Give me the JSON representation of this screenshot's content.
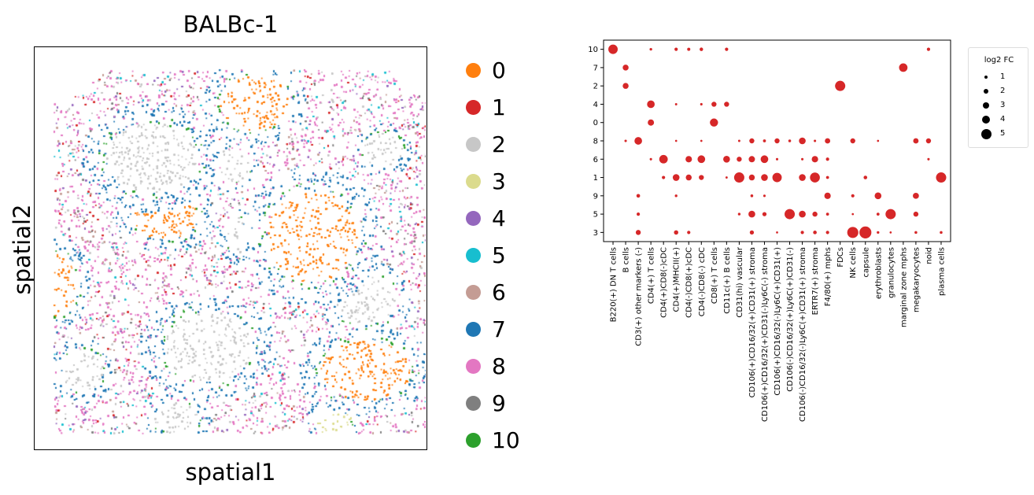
{
  "spatial_plot": {
    "title": "BALBc-1",
    "xlabel": "spatial1",
    "ylabel": "spatial2"
  },
  "legend": {
    "items": [
      {
        "label": "0",
        "color": "#ff7f0e"
      },
      {
        "label": "1",
        "color": "#d62728"
      },
      {
        "label": "2",
        "color": "#c7c7c7"
      },
      {
        "label": "3",
        "color": "#dbdb8d"
      },
      {
        "label": "4",
        "color": "#9467bd"
      },
      {
        "label": "5",
        "color": "#17becf"
      },
      {
        "label": "6",
        "color": "#c49c94"
      },
      {
        "label": "7",
        "color": "#1f77b4"
      },
      {
        "label": "8",
        "color": "#e377c2"
      },
      {
        "label": "9",
        "color": "#7f7f7f"
      },
      {
        "label": "10",
        "color": "#2ca02c"
      }
    ]
  },
  "chart_data": [
    {
      "type": "scatter",
      "title": "BALBc-1",
      "xlabel": "spatial1",
      "ylabel": "spatial2",
      "legend": [
        "0",
        "1",
        "2",
        "3",
        "4",
        "5",
        "6",
        "7",
        "8",
        "9",
        "10"
      ],
      "legend_position": "right"
    },
    {
      "type": "scatter",
      "title": "",
      "xlabel": "",
      "ylabel": "",
      "categories_x": [
        "B220(+) DN T cells",
        "B cells",
        "CD3(+) other markers (-)",
        "CD4(+) T cells",
        "CD4(+)CD8(-)cDC",
        "CD4(+)MHCII(+)",
        "CD4(-)CD8(+)cDC",
        "CD4(-)CD8(-) cDC",
        "CD8(+) T cells",
        "CD11c(+) B cells",
        "CD31(hi) vascular",
        "CD106(+)CD16/32(+)CD31(+) stroma",
        "CD106(+)CD16/32(+)CD31(-)Ly6C(-) stroma",
        "CD106(+)CD16/32(-)Ly6C(+)CD31(+)",
        "CD106(-)CD16/32(+)Ly6C(+)CD31(-)",
        "CD106(-)CD16/32(-)Ly6C(+)CD31(+) stroma",
        "ERTR7(+) stroma",
        "F4/80(+) mphs",
        "FDCs",
        "NK cells",
        "capsule",
        "erythroblasts",
        "granulocytes",
        "marginal zone mphs",
        "megakaryocytes",
        "noid",
        "plasma cells"
      ],
      "categories_y": [
        "10",
        "7",
        "2",
        "4",
        "0",
        "8",
        "6",
        "1",
        "9",
        "5",
        "3"
      ],
      "size_legend_title": "log2 FC",
      "size_legend": [
        "1",
        "2",
        "3",
        "4",
        "5"
      ],
      "color": "#d62728",
      "points": [
        {
          "x": "B220(+) DN T cells",
          "y": "10",
          "fc": 4.5
        },
        {
          "x": "CD4(+) T cells",
          "y": "10",
          "fc": 0.6
        },
        {
          "x": "CD4(+)MHCII(+)",
          "y": "10",
          "fc": 1.0
        },
        {
          "x": "CD4(-)CD8(+)cDC",
          "y": "10",
          "fc": 0.9
        },
        {
          "x": "CD4(-)CD8(-) cDC",
          "y": "10",
          "fc": 1.1
        },
        {
          "x": "CD11c(+) B cells",
          "y": "10",
          "fc": 1.0
        },
        {
          "x": "noid",
          "y": "10",
          "fc": 1.0
        },
        {
          "x": "B cells",
          "y": "7",
          "fc": 2.5
        },
        {
          "x": "marginal zone mphs",
          "y": "7",
          "fc": 4.0
        },
        {
          "x": "B cells",
          "y": "2",
          "fc": 2.5
        },
        {
          "x": "FDCs",
          "y": "2",
          "fc": 5.0
        },
        {
          "x": "CD4(+) T cells",
          "y": "4",
          "fc": 3.5
        },
        {
          "x": "CD4(+)MHCII(+)",
          "y": "4",
          "fc": 0.4
        },
        {
          "x": "CD4(-)CD8(-) cDC",
          "y": "4",
          "fc": 0.5
        },
        {
          "x": "CD8(+) T cells",
          "y": "4",
          "fc": 2.0
        },
        {
          "x": "CD11c(+) B cells",
          "y": "4",
          "fc": 2.0
        },
        {
          "x": "CD4(+) T cells",
          "y": "0",
          "fc": 2.7
        },
        {
          "x": "CD8(+) T cells",
          "y": "0",
          "fc": 3.8
        },
        {
          "x": "B cells",
          "y": "8",
          "fc": 0.5
        },
        {
          "x": "CD3(+) other markers (-)",
          "y": "8",
          "fc": 3.5
        },
        {
          "x": "CD4(+)MHCII(+)",
          "y": "8",
          "fc": 0.3
        },
        {
          "x": "CD4(-)CD8(-) cDC",
          "y": "8",
          "fc": 0.3
        },
        {
          "x": "CD31(hi) vascular",
          "y": "8",
          "fc": 0.4
        },
        {
          "x": "CD106(+)CD16/32(+)CD31(+) stroma",
          "y": "8",
          "fc": 2.0
        },
        {
          "x": "CD106(+)CD16/32(+)CD31(-)Ly6C(-) stroma",
          "y": "8",
          "fc": 0.8
        },
        {
          "x": "CD106(+)CD16/32(-)Ly6C(+)CD31(+)",
          "y": "8",
          "fc": 2.0
        },
        {
          "x": "CD106(-)CD16/32(+)Ly6C(+)CD31(-)",
          "y": "8",
          "fc": 0.7
        },
        {
          "x": "CD106(-)CD16/32(-)Ly6C(+)CD31(+) stroma",
          "y": "8",
          "fc": 3.0
        },
        {
          "x": "ERTR7(+) stroma",
          "y": "8",
          "fc": 0.5
        },
        {
          "x": "F4/80(+) mphs",
          "y": "8",
          "fc": 2.2
        },
        {
          "x": "NK cells",
          "y": "8",
          "fc": 2.0
        },
        {
          "x": "erythroblasts",
          "y": "8",
          "fc": 0.3
        },
        {
          "x": "megakaryocytes",
          "y": "8",
          "fc": 2.2
        },
        {
          "x": "noid",
          "y": "8",
          "fc": 2.0
        },
        {
          "x": "CD4(+) T cells",
          "y": "6",
          "fc": 0.5
        },
        {
          "x": "CD4(+)CD8(-)cDC",
          "y": "6",
          "fc": 4.0
        },
        {
          "x": "CD4(-)CD8(+)cDC",
          "y": "6",
          "fc": 2.8
        },
        {
          "x": "CD4(-)CD8(-) cDC",
          "y": "6",
          "fc": 3.5
        },
        {
          "x": "CD11c(+) B cells",
          "y": "6",
          "fc": 3.0
        },
        {
          "x": "CD31(hi) vascular",
          "y": "6",
          "fc": 2.0
        },
        {
          "x": "CD106(+)CD16/32(+)CD31(+) stroma",
          "y": "6",
          "fc": 2.7
        },
        {
          "x": "CD106(+)CD16/32(+)CD31(-)Ly6C(-) stroma",
          "y": "6",
          "fc": 3.5
        },
        {
          "x": "CD106(+)CD16/32(-)Ly6C(+)CD31(+)",
          "y": "6",
          "fc": 0.5
        },
        {
          "x": "CD106(-)CD16/32(-)Ly6C(+)CD31(+) stroma",
          "y": "6",
          "fc": 0.5
        },
        {
          "x": "ERTR7(+) stroma",
          "y": "6",
          "fc": 2.8
        },
        {
          "x": "F4/80(+) mphs",
          "y": "6",
          "fc": 1.0
        },
        {
          "x": "noid",
          "y": "6",
          "fc": 0.5
        },
        {
          "x": "CD4(+)CD8(-)cDC",
          "y": "1",
          "fc": 1.0
        },
        {
          "x": "CD4(+)MHCII(+)",
          "y": "1",
          "fc": 3.0
        },
        {
          "x": "CD4(-)CD8(+)cDC",
          "y": "1",
          "fc": 2.5
        },
        {
          "x": "CD4(-)CD8(-) cDC",
          "y": "1",
          "fc": 2.0
        },
        {
          "x": "CD11c(+) B cells",
          "y": "1",
          "fc": 0.4
        },
        {
          "x": "CD31(hi) vascular",
          "y": "1",
          "fc": 5.0
        },
        {
          "x": "CD106(+)CD16/32(+)CD31(+) stroma",
          "y": "1",
          "fc": 2.5
        },
        {
          "x": "CD106(+)CD16/32(+)CD31(-)Ly6C(-) stroma",
          "y": "1",
          "fc": 3.0
        },
        {
          "x": "CD106(+)CD16/32(-)Ly6C(+)CD31(+)",
          "y": "1",
          "fc": 4.5
        },
        {
          "x": "CD106(-)CD16/32(-)Ly6C(+)CD31(+) stroma",
          "y": "1",
          "fc": 3.0
        },
        {
          "x": "ERTR7(+) stroma",
          "y": "1",
          "fc": 4.8
        },
        {
          "x": "F4/80(+) mphs",
          "y": "1",
          "fc": 0.8
        },
        {
          "x": "capsule",
          "y": "1",
          "fc": 1.2
        },
        {
          "x": "plasma cells",
          "y": "1",
          "fc": 5.0
        },
        {
          "x": "CD3(+) other markers (-)",
          "y": "9",
          "fc": 1.2
        },
        {
          "x": "CD4(+)MHCII(+)",
          "y": "9",
          "fc": 0.6
        },
        {
          "x": "CD106(+)CD16/32(+)CD31(+) stroma",
          "y": "9",
          "fc": 0.7
        },
        {
          "x": "CD106(+)CD16/32(+)CD31(-)Ly6C(-) stroma",
          "y": "9",
          "fc": 0.5
        },
        {
          "x": "F4/80(+) mphs",
          "y": "9",
          "fc": 2.8
        },
        {
          "x": "NK cells",
          "y": "9",
          "fc": 1.0
        },
        {
          "x": "erythroblasts",
          "y": "9",
          "fc": 3.0
        },
        {
          "x": "megakaryocytes",
          "y": "9",
          "fc": 2.6
        },
        {
          "x": "CD3(+) other markers (-)",
          "y": "5",
          "fc": 1.0
        },
        {
          "x": "CD31(hi) vascular",
          "y": "5",
          "fc": 0.6
        },
        {
          "x": "CD106(+)CD16/32(+)CD31(+) stroma",
          "y": "5",
          "fc": 3.0
        },
        {
          "x": "CD106(+)CD16/32(+)CD31(-)Ly6C(-) stroma",
          "y": "5",
          "fc": 1.5
        },
        {
          "x": "CD106(-)CD16/32(+)Ly6C(+)CD31(-)",
          "y": "5",
          "fc": 5.0
        },
        {
          "x": "CD106(-)CD16/32(-)Ly6C(+)CD31(+) stroma",
          "y": "5",
          "fc": 3.0
        },
        {
          "x": "ERTR7(+) stroma",
          "y": "5",
          "fc": 2.0
        },
        {
          "x": "F4/80(+) mphs",
          "y": "5",
          "fc": 0.8
        },
        {
          "x": "NK cells",
          "y": "5",
          "fc": 0.3
        },
        {
          "x": "erythroblasts",
          "y": "5",
          "fc": 0.8
        },
        {
          "x": "granulocytes",
          "y": "5",
          "fc": 5.0
        },
        {
          "x": "megakaryocytes",
          "y": "5",
          "fc": 2.0
        },
        {
          "x": "CD3(+) other markers (-)",
          "y": "3",
          "fc": 2.0
        },
        {
          "x": "CD4(+)MHCII(+)",
          "y": "3",
          "fc": 1.6
        },
        {
          "x": "CD4(-)CD8(+)cDC",
          "y": "3",
          "fc": 1.0
        },
        {
          "x": "CD106(+)CD16/32(+)CD31(+) stroma",
          "y": "3",
          "fc": 1.5
        },
        {
          "x": "CD106(+)CD16/32(-)Ly6C(+)CD31(+)",
          "y": "3",
          "fc": 0.3
        },
        {
          "x": "CD106(-)CD16/32(-)Ly6C(+)CD31(+) stroma",
          "y": "3",
          "fc": 1.0
        },
        {
          "x": "ERTR7(+) stroma",
          "y": "3",
          "fc": 1.2
        },
        {
          "x": "F4/80(+) mphs",
          "y": "3",
          "fc": 1.0
        },
        {
          "x": "NK cells",
          "y": "3",
          "fc": 5.5
        },
        {
          "x": "capsule",
          "y": "3",
          "fc": 6.0
        },
        {
          "x": "erythroblasts",
          "y": "3",
          "fc": 0.6
        },
        {
          "x": "granulocytes",
          "y": "3",
          "fc": 0.3
        },
        {
          "x": "megakaryocytes",
          "y": "3",
          "fc": 0.7
        },
        {
          "x": "plasma cells",
          "y": "3",
          "fc": 0.7
        }
      ]
    }
  ]
}
